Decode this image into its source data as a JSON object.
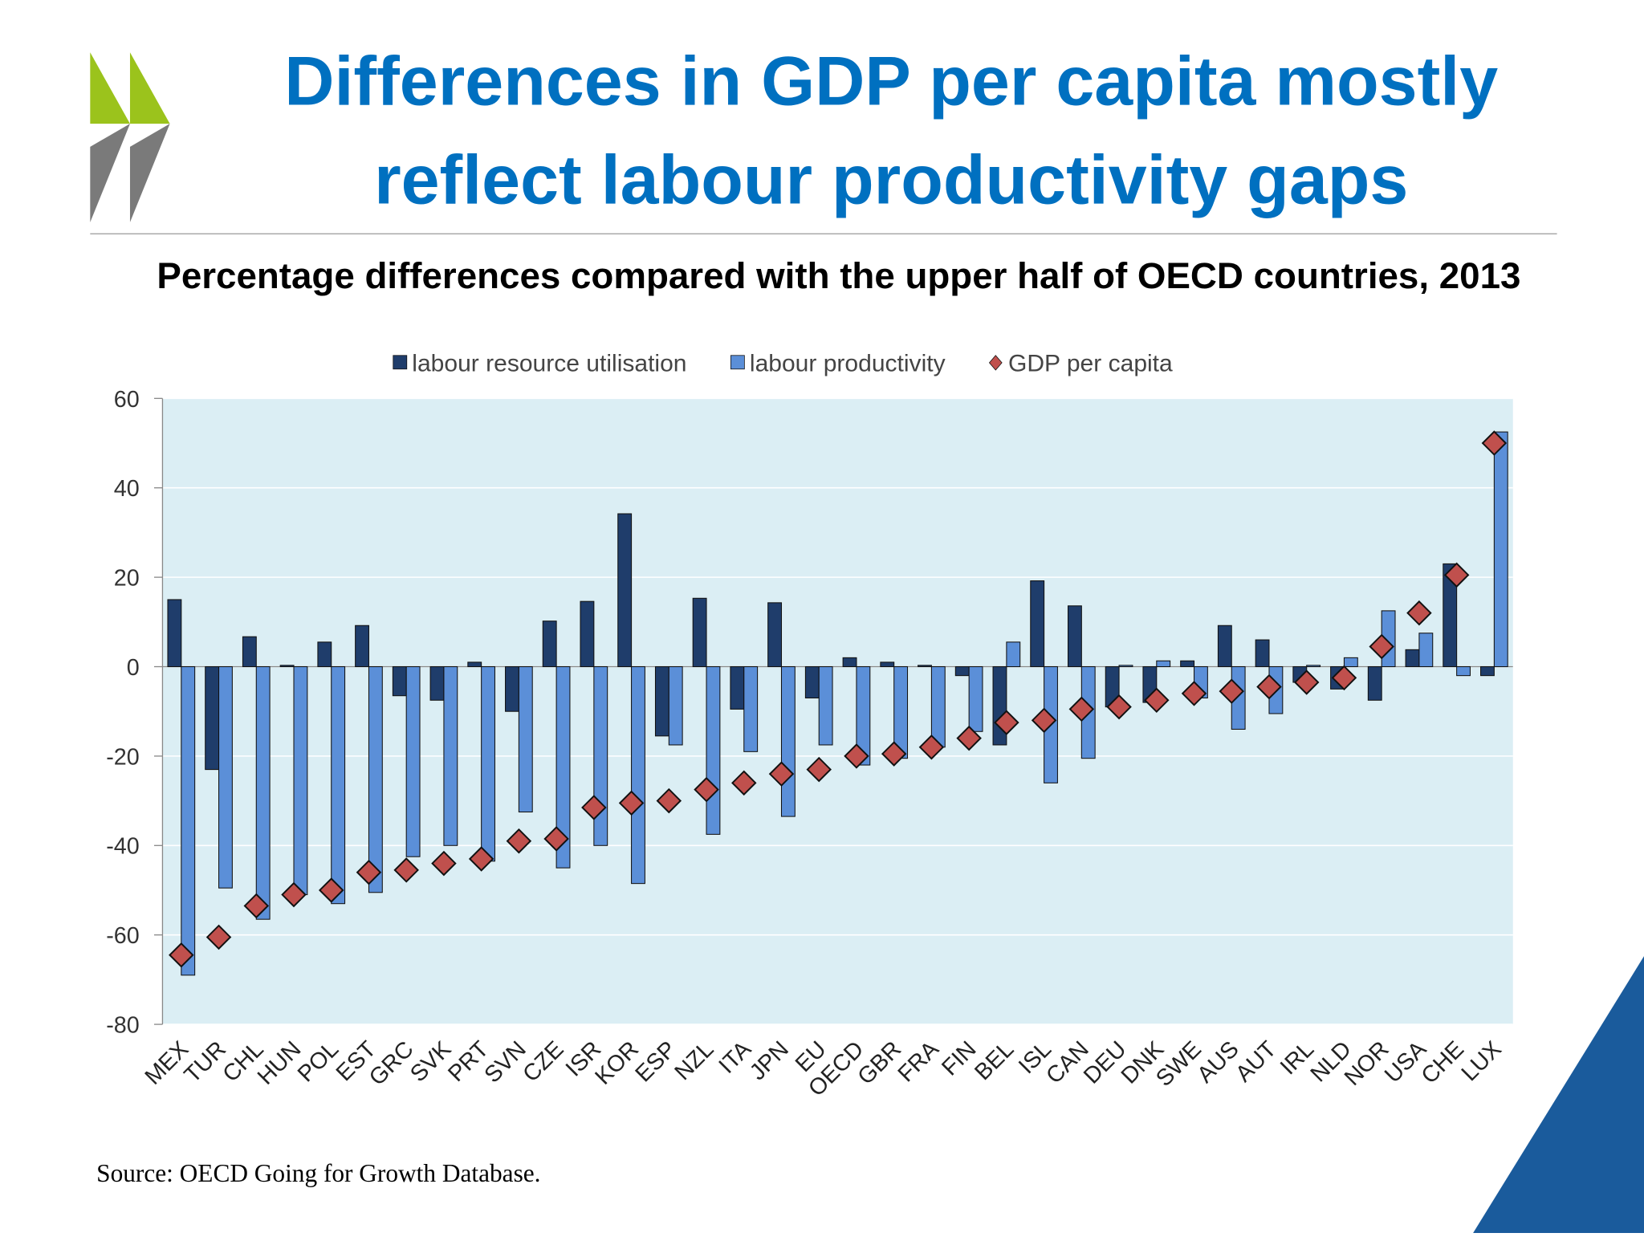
{
  "chart_data": {
    "type": "bar",
    "title": [
      "Differences in GDP per capita mostly",
      "reflect labour productivity gaps"
    ],
    "subtitle": "Percentage differences compared with the upper half of OECD countries, 2013",
    "source": "Source: OECD Going for Growth Database.",
    "categories": [
      "MEX",
      "TUR",
      "CHL",
      "HUN",
      "POL",
      "EST",
      "GRC",
      "SVK",
      "PRT",
      "SVN",
      "CZE",
      "ISR",
      "KOR",
      "ESP",
      "NZL",
      "ITA",
      "JPN",
      "EU",
      "OECD",
      "GBR",
      "FRA",
      "FIN",
      "BEL",
      "ISL",
      "CAN",
      "DEU",
      "DNK",
      "SWE",
      "AUS",
      "AUT",
      "IRL",
      "NLD",
      "NOR",
      "USA",
      "CHE",
      "LUX"
    ],
    "series": [
      {
        "name": "labour resource utilisation",
        "color": "#1f3d6b",
        "kind": "bar",
        "values": [
          15,
          -23,
          6.7,
          0.3,
          5.5,
          9.2,
          -6.5,
          -7.5,
          1,
          -10,
          10.2,
          14.6,
          34.2,
          -15.5,
          15.3,
          -9.5,
          14.3,
          -7,
          2,
          1,
          0.3,
          -2,
          -17.5,
          19.2,
          13.6,
          -9,
          -8,
          1.3,
          9.2,
          6,
          -3.5,
          -5,
          -7.5,
          3.8,
          23,
          -2
        ]
      },
      {
        "name": "labour productivity",
        "color": "#5b8fd8",
        "kind": "bar",
        "values": [
          -69,
          -49.5,
          -56.5,
          -51,
          -53,
          -50.5,
          -42.5,
          -40,
          -43.5,
          -32.5,
          -45,
          -40,
          -48.5,
          -17.5,
          -37.5,
          -19,
          -33.5,
          -17.5,
          -22,
          -20.5,
          -18,
          -14.5,
          5.5,
          -26,
          -20.5,
          0.3,
          1.3,
          -7,
          -14,
          -10.5,
          0.3,
          2,
          12.5,
          7.5,
          -2,
          52.5
        ]
      },
      {
        "name": "GDP per capita",
        "color": "#c0504d",
        "kind": "diamond",
        "values": [
          -64.5,
          -60.5,
          -53.5,
          -51,
          -50,
          -46,
          -45.5,
          -44,
          -43,
          -39,
          -38.5,
          -31.5,
          -30.5,
          -30,
          -27.5,
          -26,
          -24,
          -23,
          -20,
          -19.5,
          -18,
          -16,
          -12.5,
          -12,
          -9.5,
          -9,
          -7.5,
          -6,
          -5.5,
          -4.5,
          -3.5,
          -2.5,
          4.5,
          12,
          20.5,
          50
        ]
      }
    ],
    "ylim": [
      -80,
      60
    ],
    "yticks": [
      -80,
      -60,
      -40,
      -20,
      0,
      20,
      40,
      60
    ],
    "grid": true,
    "legend": "top"
  }
}
